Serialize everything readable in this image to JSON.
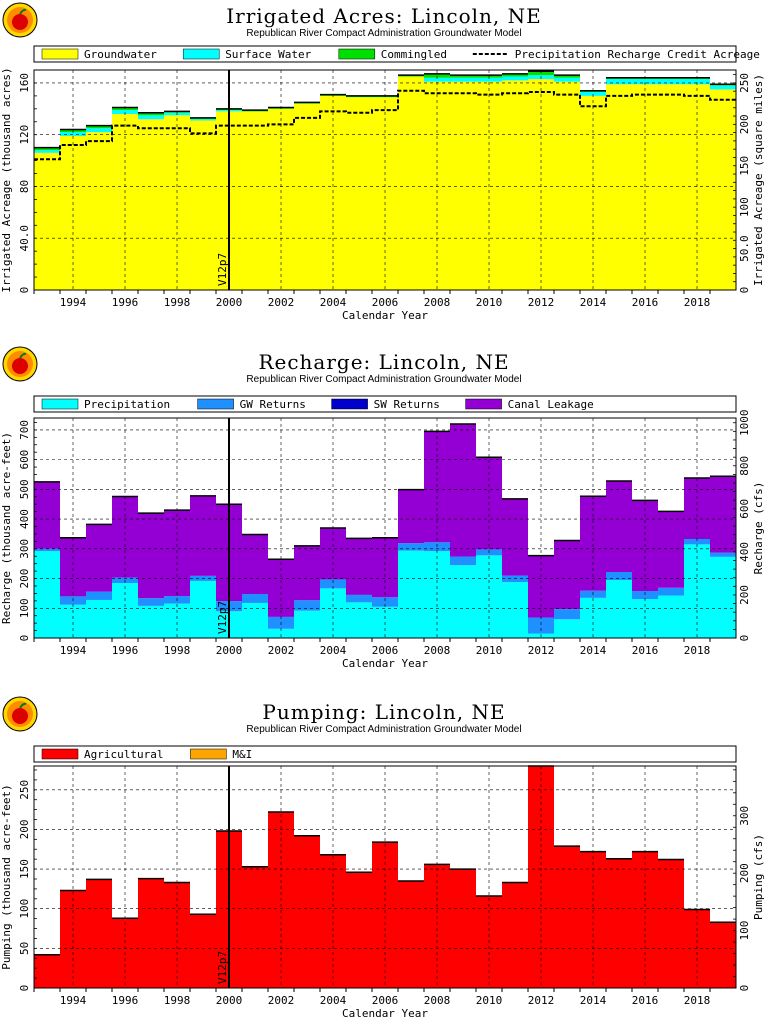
{
  "chart_data": [
    {
      "type": "bar",
      "title": "Irrigated Acres: Lincoln, NE",
      "subtitle": "Republican River Compact Administration Groundwater Model",
      "xlabel": "Calendar Year",
      "ylabel": "Irrigated Acreage (thousand acres)",
      "y2label": "Irrigated Acreage (square miles)",
      "ylim": [
        0,
        170
      ],
      "y2lim": [
        0,
        265.6
      ],
      "y_ticks": [
        0,
        40.0,
        80,
        120,
        160
      ],
      "y2_ticks": [
        0,
        50.0,
        100,
        150,
        200,
        250
      ],
      "x": [
        1993,
        1994,
        1995,
        1996,
        1997,
        1998,
        1999,
        2000,
        2001,
        2002,
        2003,
        2004,
        2005,
        2006,
        2007,
        2008,
        2009,
        2010,
        2011,
        2012,
        2013,
        2014,
        2015,
        2016,
        2017,
        2018,
        2019
      ],
      "x_tick_labels": [
        "1994",
        "1996",
        "1998",
        "2000",
        "2002",
        "2004",
        "2006",
        "2008",
        "2010",
        "2012",
        "2014",
        "2016",
        "2018"
      ],
      "legend": "top",
      "grid": true,
      "stacked": true,
      "marker_label": "V12p7",
      "marker_x": 2000.5,
      "series": [
        {
          "name": "Groundwater",
          "color": "#ffff00",
          "values": [
            106,
            119,
            122,
            136,
            132,
            135,
            131,
            138,
            138,
            140,
            144,
            150,
            149,
            149,
            165,
            161,
            161,
            161,
            162,
            163,
            161,
            150,
            159,
            159,
            159,
            159,
            155
          ]
        },
        {
          "name": "Surface Water",
          "color": "#00ffff",
          "values": [
            2,
            3,
            3,
            3,
            3,
            2,
            1,
            1,
            0,
            0,
            0,
            0,
            0,
            0,
            0,
            3,
            3,
            3,
            3,
            3,
            3,
            3,
            4,
            4,
            4,
            4,
            3
          ]
        },
        {
          "name": "Commingled",
          "color": "#00e000",
          "values": [
            2,
            2,
            2,
            2,
            2,
            1,
            1,
            1,
            1,
            1,
            1,
            1,
            1,
            1,
            1,
            3,
            2,
            2,
            2,
            3,
            2,
            1,
            1,
            1,
            1,
            1,
            1
          ]
        }
      ],
      "line_series": {
        "name": "Precipitation Recharge Credit Acreage",
        "values": [
          101,
          112,
          115,
          127,
          125,
          125,
          121,
          127,
          127,
          128,
          133,
          138,
          137,
          139,
          154,
          152,
          152,
          151,
          152,
          153,
          151,
          142,
          150,
          151,
          151,
          150,
          147
        ]
      }
    },
    {
      "type": "bar",
      "title": "Recharge: Lincoln, NE",
      "subtitle": "Republican River Compact Administration Groundwater Model",
      "xlabel": "Calendar Year",
      "ylabel": "Recharge (thousand acre-feet)",
      "y2label": "Recharge (cfs)",
      "ylim": [
        0,
        740
      ],
      "y2lim": [
        0,
        1022
      ],
      "y_ticks": [
        0,
        100,
        200,
        300,
        400,
        500,
        600,
        700
      ],
      "y2_ticks": [
        0,
        200,
        400,
        600,
        800,
        1000
      ],
      "x": [
        1993,
        1994,
        1995,
        1996,
        1997,
        1998,
        1999,
        2000,
        2001,
        2002,
        2003,
        2004,
        2005,
        2006,
        2007,
        2008,
        2009,
        2010,
        2011,
        2012,
        2013,
        2014,
        2015,
        2016,
        2017,
        2018,
        2019
      ],
      "x_tick_labels": [
        "1994",
        "1996",
        "1998",
        "2000",
        "2002",
        "2004",
        "2006",
        "2008",
        "2010",
        "2012",
        "2014",
        "2016",
        "2018"
      ],
      "legend": "top",
      "grid": true,
      "stacked": true,
      "marker_label": "V12p7",
      "marker_x": 2000.5,
      "series": [
        {
          "name": "Precipitation",
          "color": "#00ffff",
          "values": [
            292,
            112,
            128,
            185,
            108,
            116,
            192,
            90,
            118,
            31,
            92,
            167,
            120,
            105,
            294,
            292,
            245,
            278,
            188,
            15,
            63,
            135,
            195,
            131,
            143,
            315,
            273
          ]
        },
        {
          "name": "GW Returns",
          "color": "#1e90ff",
          "values": [
            8,
            28,
            28,
            18,
            26,
            25,
            17,
            34,
            30,
            40,
            35,
            30,
            25,
            32,
            25,
            30,
            29,
            20,
            22,
            54,
            34,
            24,
            27,
            27,
            26,
            18,
            14
          ]
        },
        {
          "name": "SW Returns",
          "color": "#0000cd",
          "values": [
            0,
            0,
            0,
            0,
            0,
            0,
            0,
            0,
            0,
            0,
            0,
            0,
            0,
            0,
            0,
            0,
            0,
            0,
            0,
            0,
            0,
            0,
            0,
            0,
            0,
            0,
            0
          ]
        },
        {
          "name": "Canal Leakage",
          "color": "#9400d3",
          "values": [
            225,
            197,
            226,
            273,
            286,
            289,
            269,
            326,
            200,
            194,
            183,
            173,
            190,
            200,
            180,
            373,
            446,
            310,
            258,
            208,
            231,
            318,
            306,
            305,
            257,
            205,
            257
          ]
        }
      ]
    },
    {
      "type": "bar",
      "title": "Pumping: Lincoln, NE",
      "subtitle": "Republican River Compact Administration Groundwater Model",
      "xlabel": "Calendar Year",
      "ylabel": "Pumping (thousand acre-feet)",
      "y2label": "Pumping (cfs)",
      "ylim": [
        0,
        280
      ],
      "y2lim": [
        0,
        386.7
      ],
      "y_ticks": [
        0,
        50,
        100,
        150,
        200,
        250
      ],
      "y2_ticks": [
        0,
        100,
        200,
        300
      ],
      "x": [
        1993,
        1994,
        1995,
        1996,
        1997,
        1998,
        1999,
        2000,
        2001,
        2002,
        2003,
        2004,
        2005,
        2006,
        2007,
        2008,
        2009,
        2010,
        2011,
        2012,
        2013,
        2014,
        2015,
        2016,
        2017,
        2018,
        2019
      ],
      "x_tick_labels": [
        "1994",
        "1996",
        "1998",
        "2000",
        "2002",
        "2004",
        "2006",
        "2008",
        "2010",
        "2012",
        "2014",
        "2016",
        "2018"
      ],
      "legend": "top",
      "grid": true,
      "stacked": true,
      "marker_label": "V12p7",
      "marker_x": 2000.5,
      "series": [
        {
          "name": "Agricultural",
          "color": "#ff0000",
          "values": [
            42,
            123,
            137,
            88,
            138,
            133,
            93,
            198,
            153,
            222,
            192,
            168,
            146,
            184,
            135,
            156,
            150,
            116,
            133,
            280,
            179,
            172,
            163,
            172,
            162,
            99,
            83
          ]
        },
        {
          "name": "M&I",
          "color": "#ffa500",
          "values": [
            0,
            0,
            0,
            0,
            0,
            0,
            0,
            0,
            0,
            0,
            0,
            0,
            0,
            0,
            0,
            0,
            0,
            0,
            0,
            0,
            0,
            0,
            0,
            0,
            0,
            0,
            0
          ]
        }
      ]
    }
  ]
}
